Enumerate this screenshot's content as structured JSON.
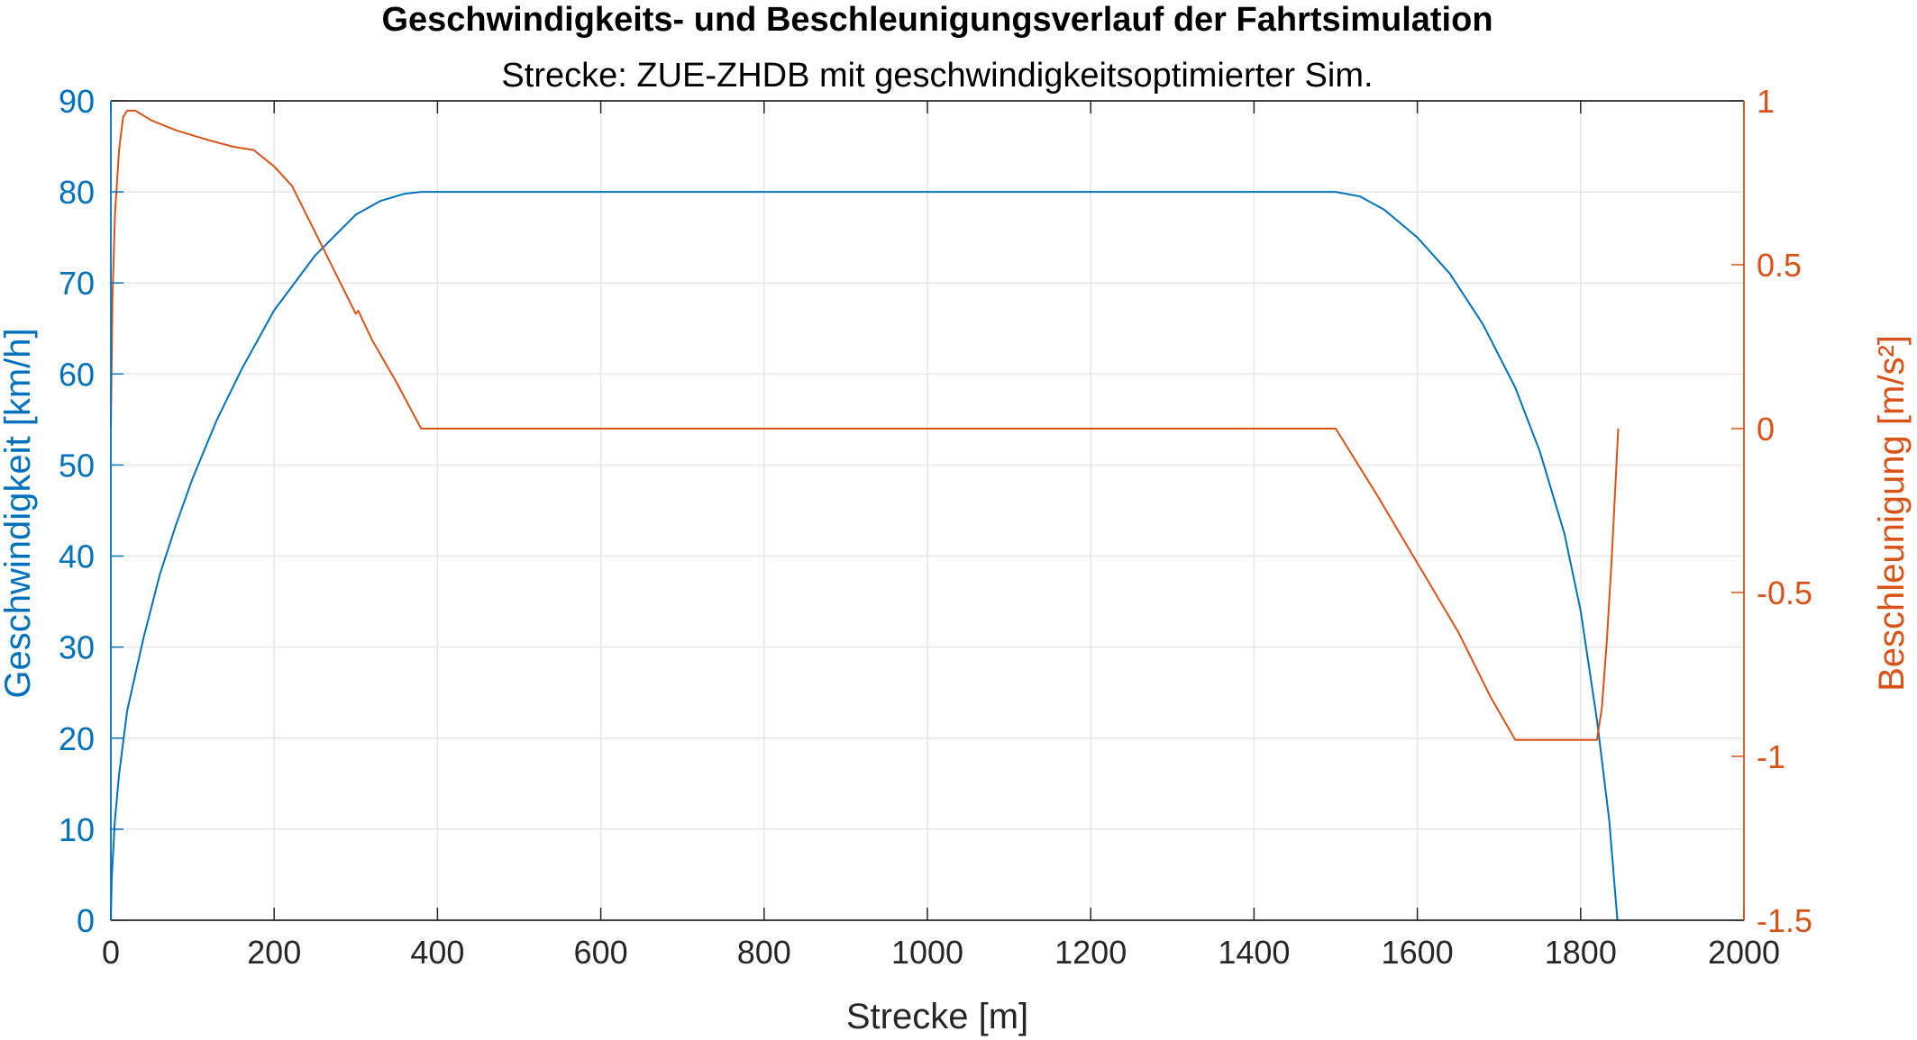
{
  "chart_data": {
    "type": "line",
    "title": "Geschwindigkeits- und Beschleunigungsverlauf der Fahrtsimulation",
    "subtitle": "Strecke: ZUE-ZHDB mit geschwindigkeitsoptimierter Sim.",
    "xlabel": "Strecke [m]",
    "ylabel_left": "Geschwindigkeit [km/h]",
    "ylabel_right": "Beschleunigung [m/s²]",
    "xlim": [
      0,
      2000
    ],
    "ylim_left": [
      0,
      90
    ],
    "ylim_right": [
      -1.5,
      1
    ],
    "x_ticks": [
      "0",
      "200",
      "400",
      "600",
      "800",
      "1000",
      "1200",
      "1400",
      "1600",
      "1800",
      "2000"
    ],
    "y_left_ticks": [
      "0",
      "10",
      "20",
      "30",
      "40",
      "50",
      "60",
      "70",
      "80",
      "90"
    ],
    "y_right_ticks": [
      "-1.5",
      "-1",
      "-0.5",
      "0",
      "0.5",
      "1"
    ],
    "grid": true,
    "colors": {
      "left_axis": "#0072BD",
      "right_axis": "#D95319",
      "grid": "#E6E6E6",
      "axis": "#262626"
    },
    "series": [
      {
        "axis": "left",
        "x": [
          0,
          1,
          5,
          10,
          20,
          40,
          60,
          80,
          100,
          130,
          160,
          200,
          250,
          300,
          330,
          360,
          380,
          1500,
          1530,
          1560,
          1600,
          1640,
          1680,
          1720,
          1750,
          1780,
          1800,
          1820,
          1835,
          1845
        ],
        "y": [
          0,
          4.5,
          11,
          16,
          23,
          31,
          38,
          43.5,
          48.5,
          55,
          60.5,
          67,
          73,
          77.5,
          79,
          79.8,
          80,
          80,
          79.5,
          78,
          75,
          71,
          65.5,
          58.5,
          51.5,
          42.5,
          34,
          22,
          11,
          0
        ]
      },
      {
        "axis": "right",
        "x": [
          0,
          2,
          5,
          10,
          15,
          20,
          30,
          50,
          80,
          120,
          150,
          175,
          200,
          222,
          250,
          280,
          300,
          303,
          320,
          350,
          380,
          1500,
          1550,
          1600,
          1650,
          1690,
          1720,
          1820,
          1826,
          1832,
          1838,
          1843,
          1846
        ],
        "y": [
          0,
          0.4,
          0.65,
          0.85,
          0.95,
          0.97,
          0.97,
          0.94,
          0.91,
          0.88,
          0.86,
          0.85,
          0.8,
          0.74,
          0.6,
          0.45,
          0.35,
          0.36,
          0.27,
          0.14,
          0,
          0,
          -0.2,
          -0.41,
          -0.62,
          -0.82,
          -0.95,
          -0.95,
          -0.85,
          -0.65,
          -0.4,
          -0.15,
          0
        ]
      }
    ]
  }
}
